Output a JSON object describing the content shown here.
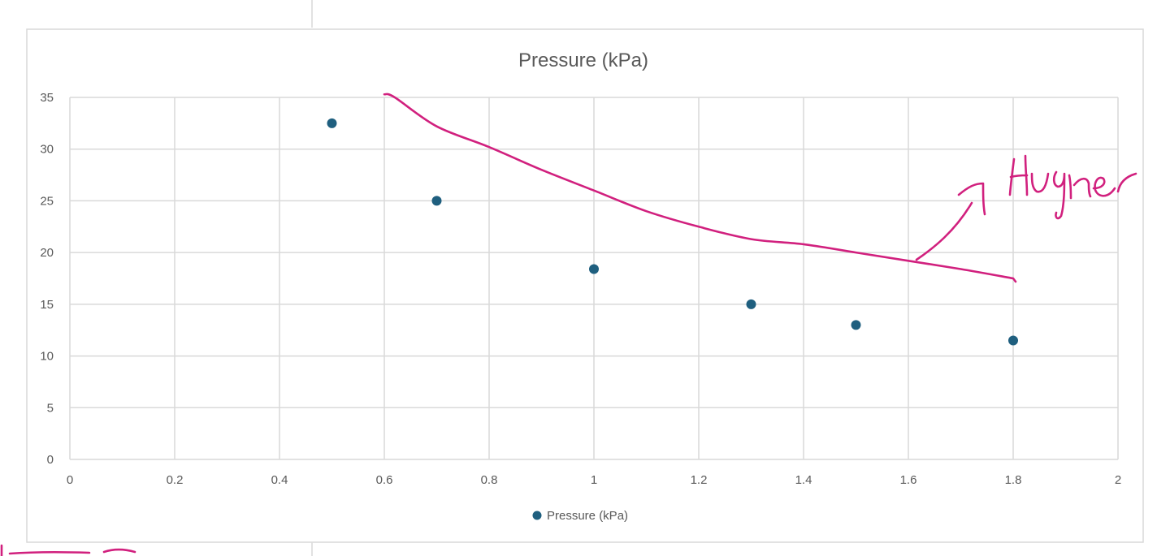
{
  "chart_data": {
    "type": "scatter",
    "title": "Pressure (kPa)",
    "xlabel": "",
    "ylabel": "",
    "xlim": [
      0,
      2
    ],
    "ylim": [
      0,
      35
    ],
    "x_ticks": [
      "0",
      "0.2",
      "0.4",
      "0.6",
      "0.8",
      "1",
      "1.2",
      "1.4",
      "1.6",
      "1.8",
      "2"
    ],
    "y_ticks": [
      "0",
      "5",
      "10",
      "15",
      "20",
      "25",
      "30",
      "35"
    ],
    "x_tick_values": [
      0,
      0.2,
      0.4,
      0.6,
      0.8,
      1.0,
      1.2,
      1.4,
      1.6,
      1.8,
      2.0
    ],
    "y_tick_values": [
      0,
      5,
      10,
      15,
      20,
      25,
      30,
      35
    ],
    "grid": true,
    "legend_position": "bottom-center",
    "series": [
      {
        "name": "Pressure (kPa)",
        "color": "#1f5f7f",
        "x": [
          0.5,
          0.7,
          1.0,
          1.3,
          1.5,
          1.8
        ],
        "y": [
          32.5,
          25,
          18.4,
          15,
          13,
          11.5
        ]
      }
    ],
    "annotation": {
      "kind": "handwritten-trend-curve",
      "color": "#d1207e",
      "x": [
        0.6,
        0.62,
        0.7,
        0.8,
        0.9,
        1.0,
        1.1,
        1.2,
        1.3,
        1.4,
        1.5,
        1.6,
        1.7,
        1.8
      ],
      "y": [
        35.3,
        35,
        32.2,
        30.2,
        28,
        26,
        24,
        22.5,
        21.3,
        20.8,
        20,
        19.2,
        18.4,
        17.5
      ]
    }
  }
}
